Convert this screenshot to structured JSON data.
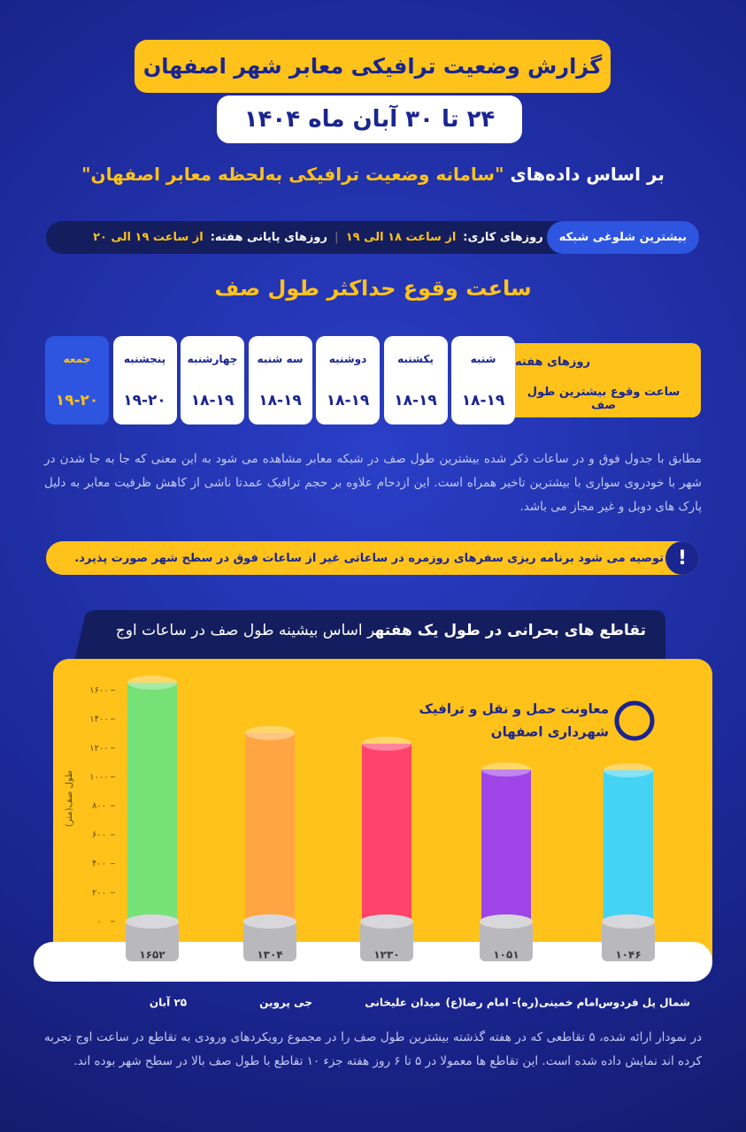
{
  "header": {
    "title": "گزارش وضعیت ترافیکی معابر شهر اصفهان",
    "date": "۲۴ تا ۳۰ آبان ماه ۱۴۰۴"
  },
  "source": {
    "lead": "بر اساس داده‌های",
    "name": "\"سامانه وضعیت ترافیکی به‌لحظه معابر اصفهان\""
  },
  "peak": {
    "label": "بیشترین شلوغی شبکه",
    "weekday_label": "روزهای کاری:",
    "weekday_value": "از ساعت ۱۸ الی ۱۹",
    "weekend_label": "روزهای پایانی هفته:",
    "weekend_value": "از ساعت ۱۹ الی ۲۰"
  },
  "table": {
    "title": "ساعت وقوع حداکثر طول صف",
    "row_headers": [
      "روزهای هفته",
      "ساعت وقوع بیشترین طول صف"
    ],
    "days": [
      "شنبه",
      "یکشنبه",
      "دوشنبه",
      "سه شنبه",
      "چهارشنبه",
      "پنجشنبه",
      "جمعه"
    ],
    "hours": [
      "۱۸-۱۹",
      "۱۸-۱۹",
      "۱۸-۱۹",
      "۱۸-۱۹",
      "۱۸-۱۹",
      "۱۹-۲۰",
      "۱۹-۲۰"
    ]
  },
  "note": "مطابق با جدول فوق و در ساعات ذکر شده بیشترین طول صف در شبکه معابر مشاهده می شود به این معنی که جا به جا شدن در شهر با خودروی سواری با بیشترین تاخیر همراه است. این ازدحام علاوه بر حجم ترافیک عمدتا ناشی از کاهش ظرفیت معابر به دلیل پارک های دوبل و غیر مجاز می باشد.",
  "advice": {
    "icon": "!",
    "text": "توصیه می شود برنامه ریزی سفرهای روزمره در ساعاتی غیر از ساعات فوق در سطح شهر صورت پذیرد."
  },
  "logo": {
    "line1": "معاونت حمل و نقل و ترافیک",
    "line2": "شهرداری اصفهان"
  },
  "chart_data": {
    "type": "bar",
    "title": "تقاطع های بحرانی در طول یک هفته",
    "subtitle": "بر اساس بیشینه طول صف در ساعات اوج",
    "y_label": "طول صف(متر)",
    "categories": [
      "۲۵ آبان",
      "جی پروین",
      "میدان علیخانی",
      "امام خمینی(ره)- امام رضا(ع)",
      "شمال پل فردوس"
    ],
    "values": [
      1652,
      1304,
      1230,
      1051,
      1046
    ],
    "value_labels": [
      "۱۶۵۲",
      "۱۳۰۴",
      "۱۲۳۰",
      "۱۰۵۱",
      "۱۰۴۶"
    ],
    "colors": [
      "#6fe37c",
      "#ffa446",
      "#ff3c70",
      "#9a3df2",
      "#3ad4ff"
    ],
    "ylim": [
      0,
      1700
    ],
    "yticks": [
      {
        "value": 0,
        "label": "۰"
      },
      {
        "value": 200,
        "label": "۲۰۰"
      },
      {
        "value": 400,
        "label": "۴۰۰"
      },
      {
        "value": 600,
        "label": "۶۰۰"
      },
      {
        "value": 800,
        "label": "۸۰۰"
      },
      {
        "value": 1000,
        "label": "۱۰۰۰"
      },
      {
        "value": 1200,
        "label": "۱۲۰۰"
      },
      {
        "value": 1400,
        "label": "۱۴۰۰"
      },
      {
        "value": 1600,
        "label": "۱۶۰۰"
      }
    ]
  },
  "footer": "در نمودار ارائه شده، ۵ تقاطعی که در هفته گذشته بیشترین طول صف را در مجموع رویکردهای ورودی به تقاطع در ساعت اوج تجربه کرده اند نمایش داده شده است. این تقاطع ها معمولا در ۵ تا ۶ روز هفته جزء ۱۰ تقاطع با طول صف بالا در سطح شهر بوده اند."
}
